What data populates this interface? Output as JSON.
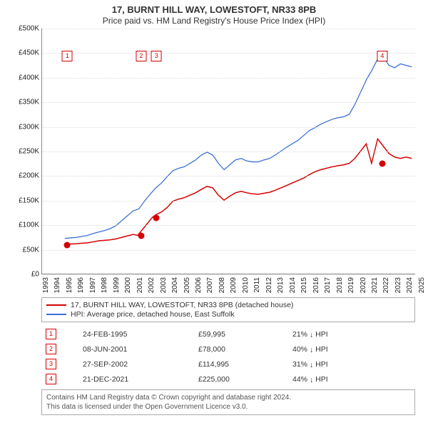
{
  "title": "17, BURNT HILL WAY, LOWESTOFT, NR33 8PB",
  "subtitle": "Price paid vs. HM Land Registry's House Price Index (HPI)",
  "chart": {
    "type": "line",
    "background_color": "#ffffff",
    "grid_color": "#dddddd",
    "axis_color": "#888888",
    "title_fontsize": 13,
    "label_fontsize": 10,
    "x": {
      "min": 1993,
      "max": 2025.8,
      "ticks": [
        1993,
        1994,
        1995,
        1996,
        1997,
        1998,
        1999,
        2000,
        2001,
        2002,
        2003,
        2004,
        2005,
        2006,
        2007,
        2008,
        2009,
        2010,
        2011,
        2012,
        2013,
        2014,
        2015,
        2016,
        2017,
        2018,
        2019,
        2020,
        2021,
        2022,
        2023,
        2024,
        2025
      ]
    },
    "y": {
      "min": 0,
      "max": 500000,
      "ticks": [
        0,
        50000,
        100000,
        150000,
        200000,
        250000,
        300000,
        350000,
        400000,
        450000,
        500000
      ],
      "prefix": "£",
      "suffix": "K",
      "divisor": 1000
    },
    "series": [
      {
        "name": "property",
        "label": "17, BURNT HILL WAY, LOWESTOFT, NR33 8PB (detached house)",
        "color": "#d40000",
        "line_width": 1.5,
        "points": [
          [
            1995.0,
            60000
          ],
          [
            1995.5,
            60500
          ],
          [
            1996.0,
            61000
          ],
          [
            1996.5,
            62000
          ],
          [
            1997.0,
            63000
          ],
          [
            1997.5,
            65000
          ],
          [
            1998.0,
            67000
          ],
          [
            1998.5,
            68000
          ],
          [
            1999.0,
            69000
          ],
          [
            1999.5,
            71000
          ],
          [
            2000.0,
            74000
          ],
          [
            2000.5,
            77000
          ],
          [
            2001.0,
            80000
          ],
          [
            2001.4,
            78000
          ],
          [
            2002.0,
            95000
          ],
          [
            2002.7,
            115000
          ],
          [
            2003.0,
            120000
          ],
          [
            2003.5,
            126000
          ],
          [
            2004.0,
            135000
          ],
          [
            2004.5,
            148000
          ],
          [
            2005.0,
            152000
          ],
          [
            2005.5,
            155000
          ],
          [
            2006.0,
            160000
          ],
          [
            2006.5,
            165000
          ],
          [
            2007.0,
            172000
          ],
          [
            2007.5,
            178000
          ],
          [
            2008.0,
            175000
          ],
          [
            2008.5,
            160000
          ],
          [
            2009.0,
            150000
          ],
          [
            2009.5,
            158000
          ],
          [
            2010.0,
            165000
          ],
          [
            2010.5,
            168000
          ],
          [
            2011.0,
            165000
          ],
          [
            2011.5,
            163000
          ],
          [
            2012.0,
            162000
          ],
          [
            2012.5,
            164000
          ],
          [
            2013.0,
            166000
          ],
          [
            2013.5,
            170000
          ],
          [
            2014.0,
            175000
          ],
          [
            2014.5,
            180000
          ],
          [
            2015.0,
            185000
          ],
          [
            2015.5,
            190000
          ],
          [
            2016.0,
            195000
          ],
          [
            2016.5,
            202000
          ],
          [
            2017.0,
            208000
          ],
          [
            2017.5,
            212000
          ],
          [
            2018.0,
            215000
          ],
          [
            2018.5,
            218000
          ],
          [
            2019.0,
            220000
          ],
          [
            2019.5,
            222000
          ],
          [
            2020.0,
            225000
          ],
          [
            2020.5,
            235000
          ],
          [
            2021.0,
            250000
          ],
          [
            2021.5,
            265000
          ],
          [
            2021.97,
            225000
          ],
          [
            2022.5,
            275000
          ],
          [
            2023.0,
            260000
          ],
          [
            2023.5,
            245000
          ],
          [
            2024.0,
            238000
          ],
          [
            2024.5,
            235000
          ],
          [
            2025.0,
            238000
          ],
          [
            2025.5,
            235000
          ]
        ]
      },
      {
        "name": "hpi",
        "label": "HPI: Average price, detached house, East Suffolk",
        "color": "#3b6fd6",
        "line_width": 1.3,
        "points": [
          [
            1995.0,
            72000
          ],
          [
            1995.5,
            73000
          ],
          [
            1996.0,
            74000
          ],
          [
            1996.5,
            76000
          ],
          [
            1997.0,
            78000
          ],
          [
            1997.5,
            82000
          ],
          [
            1998.0,
            85000
          ],
          [
            1998.5,
            88000
          ],
          [
            1999.0,
            92000
          ],
          [
            1999.5,
            98000
          ],
          [
            2000.0,
            108000
          ],
          [
            2000.5,
            118000
          ],
          [
            2001.0,
            128000
          ],
          [
            2001.5,
            132000
          ],
          [
            2002.0,
            148000
          ],
          [
            2002.5,
            162000
          ],
          [
            2003.0,
            175000
          ],
          [
            2003.5,
            185000
          ],
          [
            2004.0,
            198000
          ],
          [
            2004.5,
            210000
          ],
          [
            2005.0,
            215000
          ],
          [
            2005.5,
            218000
          ],
          [
            2006.0,
            225000
          ],
          [
            2006.5,
            232000
          ],
          [
            2007.0,
            242000
          ],
          [
            2007.5,
            248000
          ],
          [
            2008.0,
            242000
          ],
          [
            2008.5,
            225000
          ],
          [
            2009.0,
            212000
          ],
          [
            2009.5,
            222000
          ],
          [
            2010.0,
            232000
          ],
          [
            2010.5,
            235000
          ],
          [
            2011.0,
            230000
          ],
          [
            2011.5,
            228000
          ],
          [
            2012.0,
            228000
          ],
          [
            2012.5,
            232000
          ],
          [
            2013.0,
            235000
          ],
          [
            2013.5,
            242000
          ],
          [
            2014.0,
            250000
          ],
          [
            2014.5,
            258000
          ],
          [
            2015.0,
            265000
          ],
          [
            2015.5,
            272000
          ],
          [
            2016.0,
            282000
          ],
          [
            2016.5,
            292000
          ],
          [
            2017.0,
            298000
          ],
          [
            2017.5,
            305000
          ],
          [
            2018.0,
            310000
          ],
          [
            2018.5,
            315000
          ],
          [
            2019.0,
            318000
          ],
          [
            2019.5,
            320000
          ],
          [
            2020.0,
            325000
          ],
          [
            2020.5,
            345000
          ],
          [
            2021.0,
            370000
          ],
          [
            2021.5,
            395000
          ],
          [
            2022.0,
            415000
          ],
          [
            2022.5,
            438000
          ],
          [
            2023.0,
            442000
          ],
          [
            2023.5,
            425000
          ],
          [
            2024.0,
            420000
          ],
          [
            2024.5,
            428000
          ],
          [
            2025.0,
            425000
          ],
          [
            2025.5,
            422000
          ]
        ]
      }
    ],
    "markers": [
      {
        "n": 1,
        "x": 1995.15,
        "y": 59995,
        "color": "#d40000"
      },
      {
        "n": 2,
        "x": 2001.44,
        "y": 78000,
        "color": "#d40000"
      },
      {
        "n": 3,
        "x": 2002.74,
        "y": 114995,
        "color": "#d40000"
      },
      {
        "n": 4,
        "x": 2021.97,
        "y": 225000,
        "color": "#d40000"
      }
    ],
    "flag_color": "#d40000",
    "flag_y": 455000
  },
  "legend": {
    "border_color": "#aaaaaa"
  },
  "sales": {
    "rows": [
      {
        "n": "1",
        "date": "24-FEB-1995",
        "price": "£59,995",
        "diff": "21% ↓ HPI"
      },
      {
        "n": "2",
        "date": "08-JUN-2001",
        "price": "£78,000",
        "diff": "40% ↓ HPI"
      },
      {
        "n": "3",
        "date": "27-SEP-2002",
        "price": "£114,995",
        "diff": "31% ↓ HPI"
      },
      {
        "n": "4",
        "date": "21-DEC-2021",
        "price": "£225,000",
        "diff": "44% ↓ HPI"
      }
    ],
    "box_color": "#d40000"
  },
  "footer": {
    "line1": "Contains HM Land Registry data © Crown copyright and database right 2024.",
    "line2": "This data is licensed under the Open Government Licence v3.0."
  }
}
